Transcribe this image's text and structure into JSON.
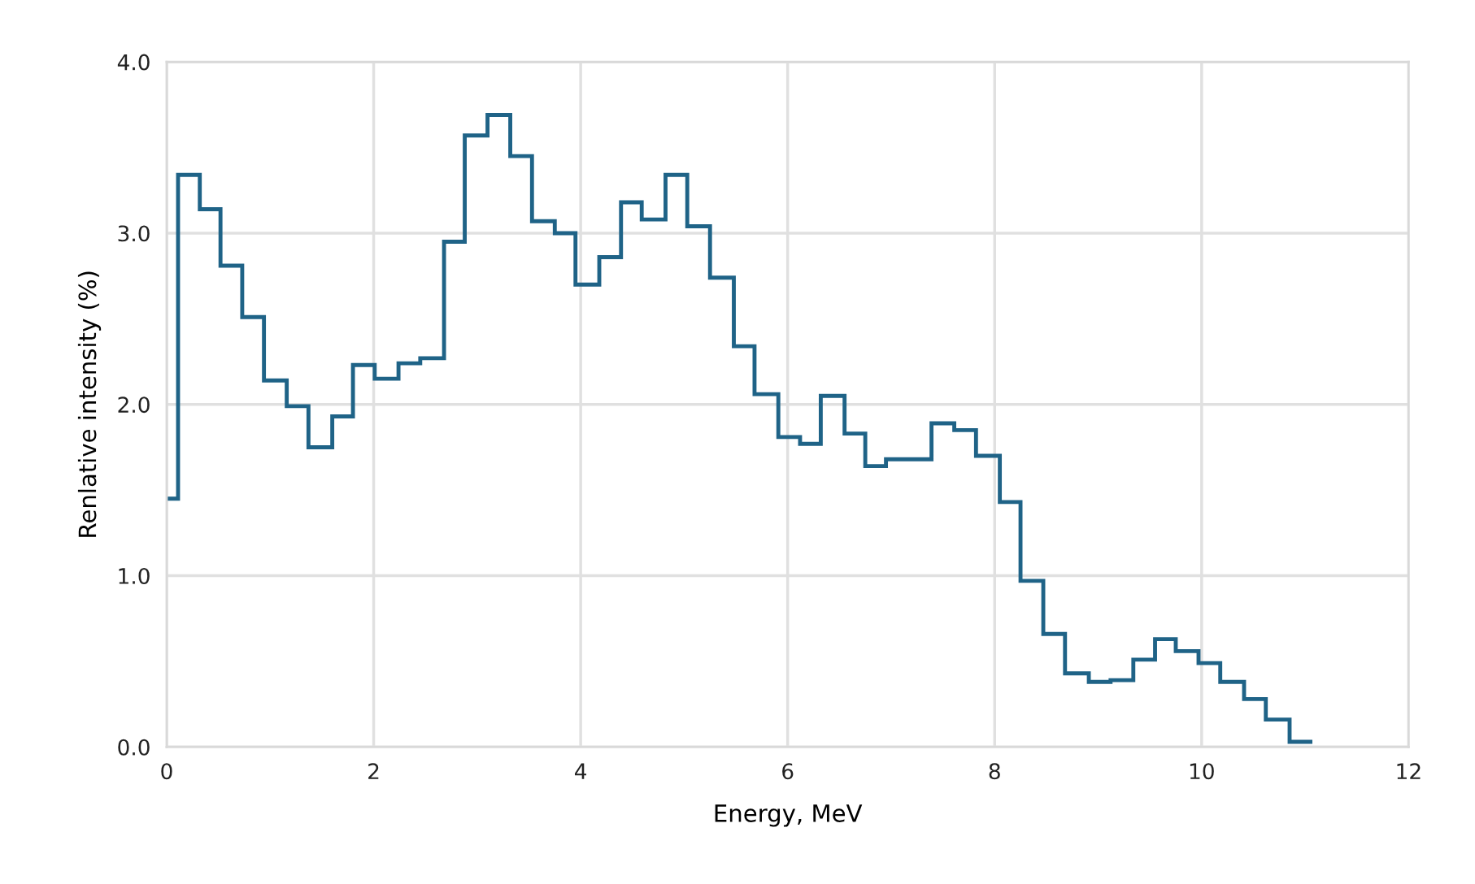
{
  "chart_data": {
    "type": "histogram",
    "xlabel": "Energy, MeV",
    "ylabel": "Renlative intensity (%)",
    "bins": [
      0,
      0.11,
      0.32,
      0.52,
      0.73,
      0.94,
      1.16,
      1.37,
      1.6,
      1.8,
      2.01,
      2.24,
      2.45,
      2.68,
      2.88,
      3.1,
      3.32,
      3.53,
      3.75,
      3.95,
      4.18,
      4.39,
      4.59,
      4.82,
      5.03,
      5.25,
      5.48,
      5.68,
      5.91,
      6.12,
      6.32,
      6.55,
      6.75,
      6.95,
      7.18,
      7.39,
      7.61,
      7.82,
      8.05,
      8.25,
      8.47,
      8.68,
      8.91,
      9.12,
      9.34,
      9.55,
      9.75,
      9.97,
      10.18,
      10.41,
      10.62,
      10.85,
      11.07
    ],
    "values": [
      1.45,
      3.34,
      3.14,
      2.81,
      2.51,
      2.14,
      1.99,
      1.75,
      1.93,
      2.23,
      2.15,
      2.24,
      2.27,
      2.95,
      3.57,
      3.69,
      3.45,
      3.07,
      3.0,
      2.7,
      2.86,
      3.18,
      3.08,
      3.34,
      3.04,
      2.74,
      2.34,
      2.06,
      1.81,
      1.77,
      2.05,
      1.83,
      1.64,
      1.68,
      1.68,
      1.89,
      1.85,
      1.7,
      1.43,
      0.97,
      0.66,
      0.43,
      0.38,
      0.39,
      0.51,
      0.63,
      0.56,
      0.49,
      0.38,
      0.28,
      0.16,
      0.03
    ],
    "color": "#1f6387",
    "xlim": [
      0,
      12
    ],
    "xticks": [
      0,
      2,
      4,
      6,
      8,
      10,
      12
    ],
    "ylim": [
      0,
      4
    ],
    "yticks": [
      {
        "value": 0,
        "label": "0.0"
      },
      {
        "value": 1,
        "label": "1.0"
      },
      {
        "value": 2,
        "label": "2.0"
      },
      {
        "value": 3,
        "label": "3.0"
      },
      {
        "value": 4,
        "label": "4.0"
      }
    ],
    "grid": true
  }
}
